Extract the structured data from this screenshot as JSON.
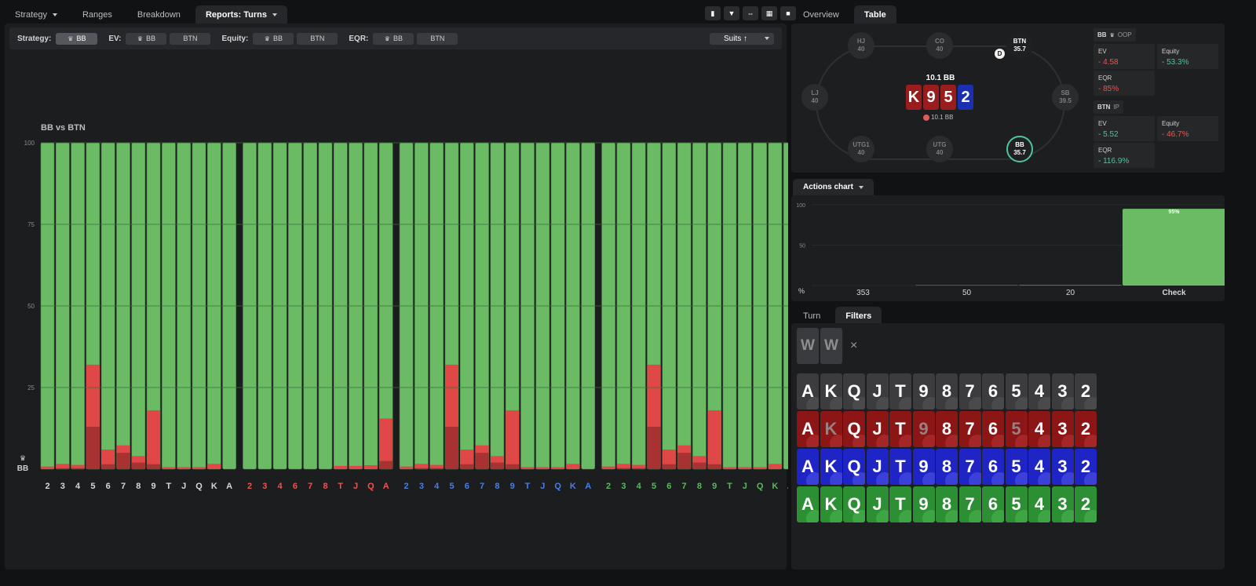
{
  "left_tabs": [
    {
      "label": "Strategy",
      "caret": true
    },
    {
      "label": "Ranges"
    },
    {
      "label": "Breakdown"
    },
    {
      "label": "Reports: Turns",
      "caret": true,
      "active": true
    }
  ],
  "toolbar_icons": [
    "bar-chart-icon",
    "filter-icon",
    "compress-icon",
    "grid-icon",
    "square-icon"
  ],
  "filter_bar": {
    "strategy_label": "Strategy:",
    "strategy_selected": "BB",
    "ev_label": "EV:",
    "ev_options": [
      "BB",
      "BTN"
    ],
    "equity_label": "Equity:",
    "equity_options": [
      "BB",
      "BTN"
    ],
    "eqr_label": "EQR:",
    "eqr_options": [
      "BB",
      "BTN"
    ],
    "suits_label": "Suits ↑"
  },
  "chart_title": "BB vs BTN",
  "colors": {
    "green": "#6abb64",
    "red": "#e04848",
    "darkred": "#a83232",
    "grey": "#d6d6d6",
    "red_suit": "#ef5350",
    "blue_suit": "#4a7fe8",
    "green_suit": "#5cb860"
  },
  "chart_data": {
    "type": "bar",
    "stacked": true,
    "ylim": [
      0,
      100
    ],
    "yticks": [
      25,
      50,
      75,
      100
    ],
    "ylabel": "BB",
    "groups": [
      {
        "suit": "grey",
        "categories": [
          "2",
          "3",
          "4",
          "5",
          "6",
          "7",
          "8",
          "9",
          "T",
          "J",
          "Q",
          "K",
          "A"
        ],
        "red": [
          0.8,
          1.6,
          1.3,
          32,
          6,
          7.3,
          4,
          18,
          0.6,
          0.6,
          0.6,
          1.6,
          0
        ],
        "darkred": [
          0,
          0.3,
          0.3,
          13,
          1.5,
          5,
          2,
          1.5,
          0,
          0,
          0,
          0,
          0
        ]
      },
      {
        "suit": "red",
        "categories": [
          "2",
          "3",
          "4",
          "6",
          "7",
          "8",
          "T",
          "J",
          "Q",
          "A"
        ],
        "red": [
          0,
          0,
          0,
          0,
          0,
          0,
          1,
          1,
          1.2,
          15.5
        ],
        "darkred": [
          0,
          0,
          0,
          0,
          0,
          0,
          0,
          0,
          0,
          2.5
        ]
      },
      {
        "suit": "blue",
        "categories": [
          "2",
          "3",
          "4",
          "5",
          "6",
          "7",
          "8",
          "9",
          "T",
          "J",
          "Q",
          "K",
          "A"
        ],
        "red": [
          0.8,
          1.6,
          1.3,
          32,
          6,
          7.3,
          4,
          18,
          0.6,
          0.6,
          0.6,
          1.6,
          0
        ],
        "darkred": [
          0,
          0.3,
          0.3,
          13,
          1.5,
          5,
          2,
          1.5,
          0,
          0,
          0,
          0,
          0
        ]
      },
      {
        "suit": "green",
        "categories": [
          "2",
          "3",
          "4",
          "5",
          "6",
          "7",
          "8",
          "9",
          "T",
          "J",
          "Q",
          "K",
          "A"
        ],
        "red": [
          0.8,
          1.6,
          1.3,
          32,
          6,
          7.3,
          4,
          18,
          0.6,
          0.6,
          0.6,
          1.6,
          0
        ],
        "darkred": [
          0,
          0.3,
          0.3,
          13,
          1.5,
          5,
          2,
          1.5,
          0,
          0,
          0,
          0,
          0
        ]
      }
    ]
  },
  "right_tabs": [
    {
      "label": "Overview"
    },
    {
      "label": "Table",
      "active": true
    }
  ],
  "table": {
    "seats": [
      {
        "name": "HJ",
        "stack": "40"
      },
      {
        "name": "CO",
        "stack": "40"
      },
      {
        "name": "BTN",
        "stack": "35.7",
        "active": true
      },
      {
        "name": "LJ",
        "stack": "40"
      },
      {
        "name": "SB",
        "stack": "39.5"
      },
      {
        "name": "UTG1",
        "stack": "40"
      },
      {
        "name": "UTG",
        "stack": "40"
      },
      {
        "name": "BB",
        "stack": "35.7",
        "active": true,
        "ring": true
      }
    ],
    "dealer": "D",
    "pot": "10.1 BB",
    "board": [
      {
        "rank": "K",
        "suit": "red"
      },
      {
        "rank": "9",
        "suit": "red"
      },
      {
        "rank": "5",
        "suit": "red"
      },
      {
        "rank": "2",
        "suit": "blue"
      }
    ],
    "pot_chip": "10.1 BB"
  },
  "stats": {
    "bb_header": "BB",
    "bb_tag": "OOP",
    "bb_ev_label": "EV",
    "bb_ev": "- 4.58",
    "bb_equity_label": "Equity",
    "bb_equity": "- 53.3%",
    "bb_eqr_label": "EQR",
    "bb_eqr": "- 85%",
    "btn_header": "BTN",
    "btn_tag": "IP",
    "btn_ev_label": "EV",
    "btn_ev": "- 5.52",
    "btn_equity_label": "Equity",
    "btn_equity": "- 46.7%",
    "btn_eqr_label": "EQR",
    "btn_eqr": "- 116.9%"
  },
  "actions_tab": "Actions chart",
  "actions_chart": {
    "type": "bar",
    "ylim": [
      0,
      100
    ],
    "yticks": [
      100,
      50
    ],
    "unit": "%",
    "categories": [
      "353",
      "50",
      "20",
      "Check"
    ],
    "values": [
      0,
      0.6,
      0.9,
      95
    ],
    "labels": [
      "",
      "",
      "",
      "95%"
    ]
  },
  "bottom_tabs": [
    {
      "label": "Turn"
    },
    {
      "label": "Filters",
      "active": true
    }
  ],
  "filter_cards": [
    "W",
    "W"
  ],
  "clear_icon": "×",
  "ranks": [
    "A",
    "K",
    "Q",
    "J",
    "T",
    "9",
    "8",
    "7",
    "6",
    "5",
    "4",
    "3",
    "2"
  ],
  "rank_rows": [
    {
      "suit": "grey",
      "dim": []
    },
    {
      "suit": "red",
      "dim": [
        "K",
        "9",
        "5"
      ]
    },
    {
      "suit": "blue",
      "dim": []
    },
    {
      "suit": "green",
      "dim": []
    }
  ]
}
